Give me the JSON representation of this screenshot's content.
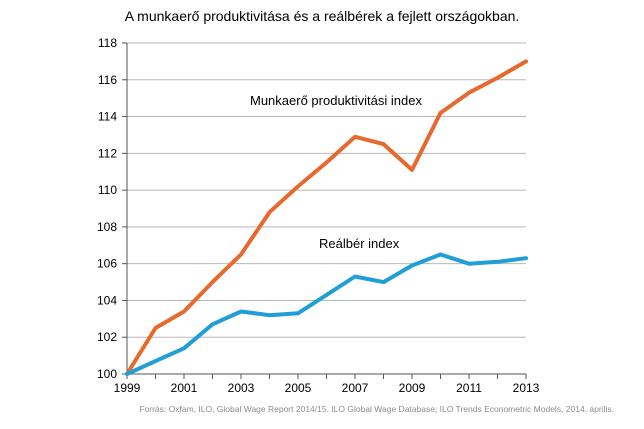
{
  "chart_data": {
    "type": "line",
    "title": "A munkaerő produktivitása és a reálbérek a fejlett országokban.",
    "xlabel": "",
    "ylabel": "",
    "x": [
      1999,
      2000,
      2001,
      2002,
      2003,
      2004,
      2005,
      2006,
      2007,
      2008,
      2009,
      2010,
      2011,
      2012,
      2013
    ],
    "x_tick_labels": [
      "1999",
      "2001",
      "2003",
      "2005",
      "2007",
      "2009",
      "2011",
      "2013"
    ],
    "xlim": [
      1999,
      2013
    ],
    "ylim": [
      100,
      118
    ],
    "y_ticks": [
      100,
      102,
      104,
      106,
      108,
      110,
      112,
      114,
      116,
      118
    ],
    "grid": true,
    "series": [
      {
        "name": "Munkaerő produktivitási index",
        "color": "#e8692d",
        "values": [
          100.0,
          102.5,
          103.4,
          105.0,
          106.5,
          108.8,
          110.2,
          111.5,
          112.9,
          112.5,
          111.1,
          114.2,
          115.3,
          116.1,
          117.0
        ]
      },
      {
        "name": "Reálbér index",
        "color": "#1f9fd6",
        "values": [
          100.0,
          100.7,
          101.4,
          102.7,
          103.4,
          103.2,
          103.3,
          104.3,
          105.3,
          105.0,
          105.9,
          106.5,
          106.0,
          106.1,
          106.3
        ]
      }
    ]
  },
  "source_note": "Forrás: Oxfam, ILO, Global Wage Report 2014/15. ILO Global Wage Database; ILO Trends Econometric Models, 2014. április."
}
